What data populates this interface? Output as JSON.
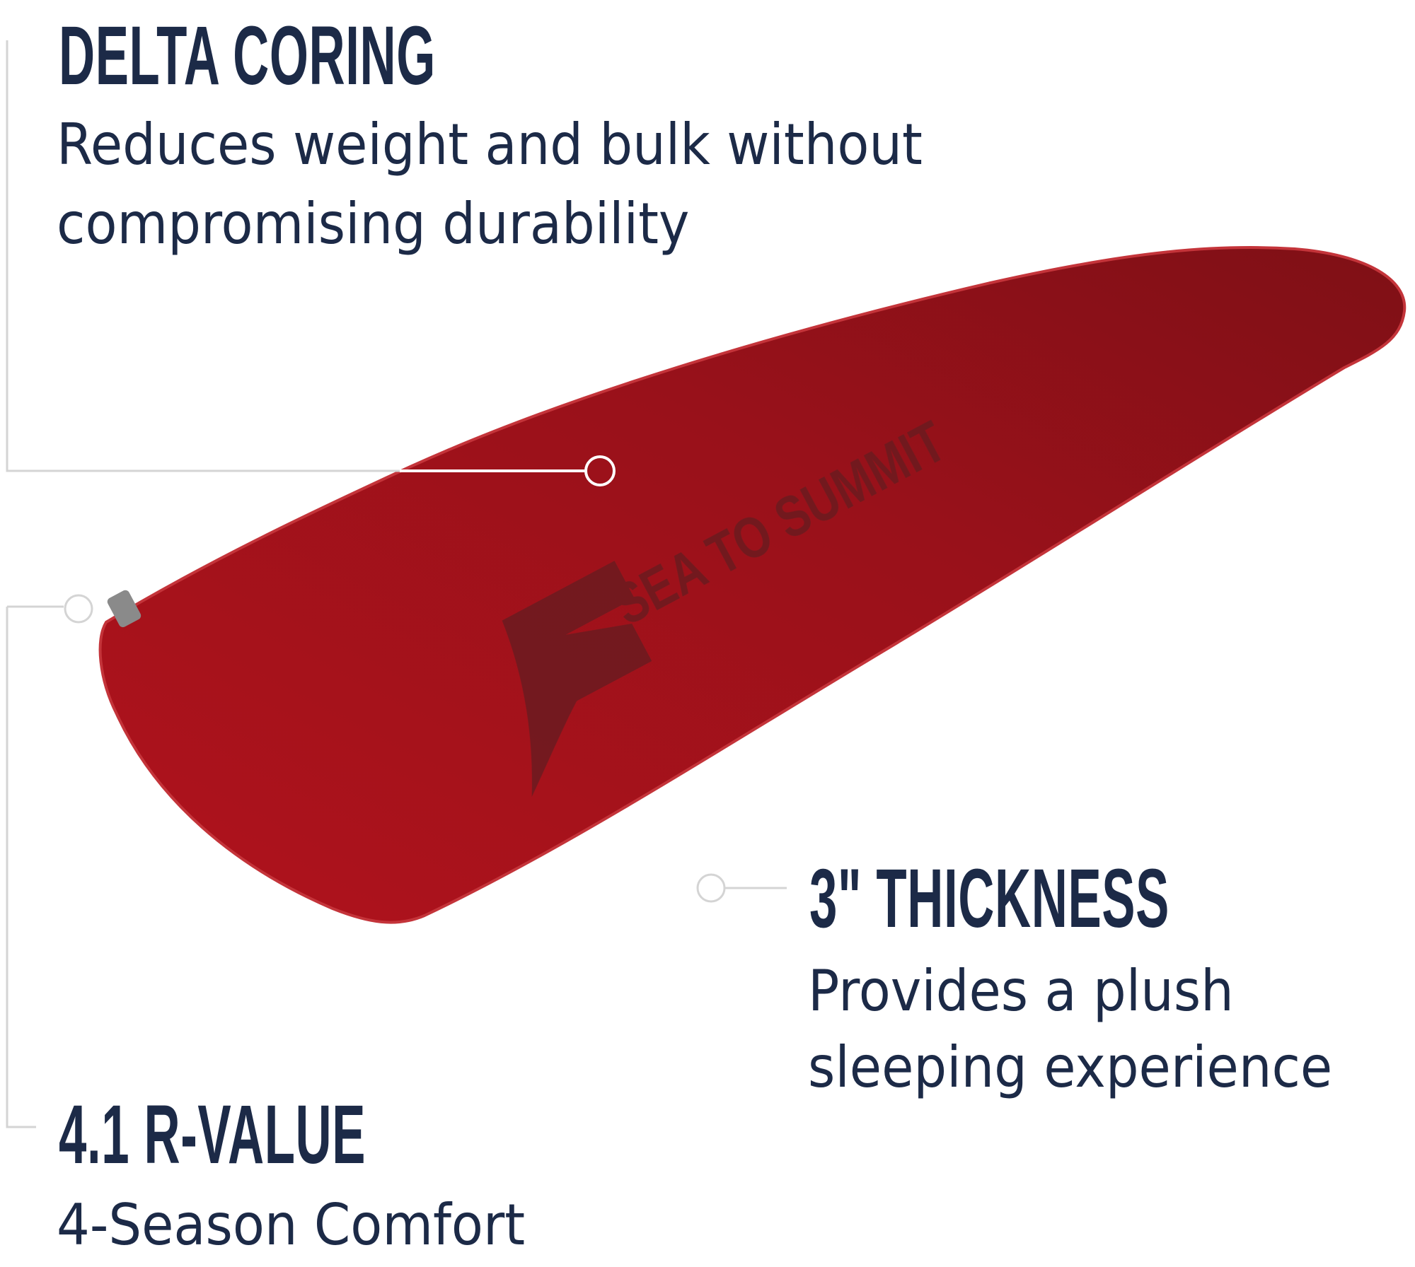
{
  "features": [
    {
      "title": "DELTA CORING",
      "lines": [
        "Reduces weight and bulk without",
        "compromising durability"
      ]
    },
    {
      "title": "3\" THICKNESS",
      "lines": [
        "Provides a plush",
        "sleeping experience"
      ]
    },
    {
      "title": "4.1 R-VALUE",
      "lines": [
        "4-Season Comfort"
      ]
    }
  ],
  "product": {
    "brand_logo": "SEA TO SUMMIT",
    "color": "#9c1119"
  },
  "colors": {
    "text": "#1c2a47",
    "callout_line": "#d4d4d4"
  }
}
